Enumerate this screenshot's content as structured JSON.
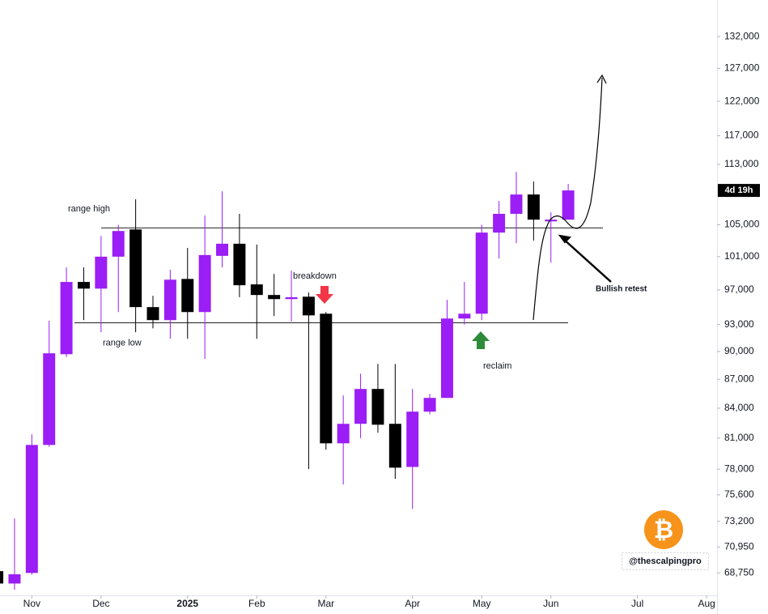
{
  "chart_data": {
    "type": "candlestick",
    "log_scale": true,
    "up_color": "#9a1ef5",
    "down_color": "#000000",
    "categories": [
      null,
      null,
      null,
      null,
      null,
      null,
      null,
      null,
      null,
      null,
      null,
      null,
      null,
      null,
      null,
      null,
      null,
      null,
      null,
      null,
      null,
      null,
      null,
      null,
      null,
      null,
      null,
      null,
      null,
      null,
      null,
      null,
      null,
      null
    ],
    "open": [
      68900,
      67870,
      68750,
      80330,
      89700,
      97940,
      97150,
      101000,
      104400,
      94990,
      93500,
      98300,
      94420,
      101100,
      102600,
      97650,
      96400,
      95920,
      96200,
      94230,
      80490,
      82420,
      85990,
      82420,
      78210,
      83650,
      85060,
      93680,
      94230,
      104000,
      106400,
      108930,
      105430,
      105650
    ],
    "high": [
      69000,
      73450,
      81380,
      93420,
      99690,
      99690,
      103580,
      105000,
      108300,
      96310,
      99400,
      102080,
      106200,
      109360,
      106400,
      102500,
      98900,
      99300,
      96700,
      94420,
      85310,
      87600,
      88650,
      88650,
      85990,
      85470,
      95830,
      97940,
      105000,
      108070,
      111970,
      110660,
      106600,
      110340
    ],
    "low": [
      67800,
      67350,
      68600,
      80150,
      89400,
      93500,
      92130,
      94420,
      92130,
      92570,
      91400,
      91400,
      89200,
      99700,
      96140,
      91400,
      93960,
      93330,
      78000,
      79870,
      76560,
      81000,
      81530,
      77090,
      74320,
      83370,
      85060,
      93000,
      93500,
      100770,
      102670,
      103000,
      100270,
      105650
    ],
    "close": [
      67870,
      68640,
      80330,
      89800,
      97940,
      97150,
      101000,
      104200,
      94990,
      93500,
      98210,
      94420,
      101200,
      102600,
      97550,
      96400,
      95920,
      96140,
      94040,
      80490,
      82420,
      85990,
      82330,
      78140,
      83650,
      85060,
      93680,
      94230,
      104000,
      106400,
      108930,
      105650,
      105650,
      109470
    ],
    "ylim": [
      66900,
      138000
    ],
    "yticks": [
      {
        "value": 68750,
        "label": "68,750"
      },
      {
        "value": 70950,
        "label": "70,950"
      },
      {
        "value": 73200,
        "label": "73,200"
      },
      {
        "value": 75600,
        "label": "75,600"
      },
      {
        "value": 78000,
        "label": "78,000"
      },
      {
        "value": 81000,
        "label": "81,000"
      },
      {
        "value": 84000,
        "label": "84,000"
      },
      {
        "value": 87000,
        "label": "87,000"
      },
      {
        "value": 90000,
        "label": "90,000"
      },
      {
        "value": 93000,
        "label": "93,000"
      },
      {
        "value": 97000,
        "label": "97,000"
      },
      {
        "value": 101000,
        "label": "101,000"
      },
      {
        "value": 105000,
        "label": "105,000"
      },
      {
        "value": 113000,
        "label": "113,000"
      },
      {
        "value": 117000,
        "label": "117,000"
      },
      {
        "value": 122000,
        "label": "122,000"
      },
      {
        "value": 127000,
        "label": "127,000"
      },
      {
        "value": 132000,
        "label": "132,000"
      }
    ],
    "xlim": [
      0.16,
      41.6
    ],
    "xticks": [
      {
        "value": 2,
        "label": "Nov"
      },
      {
        "value": 6,
        "label": "Dec"
      },
      {
        "value": 11,
        "label": "2025"
      },
      {
        "value": 15,
        "label": "Feb"
      },
      {
        "value": 19,
        "label": "Mar"
      },
      {
        "value": 24,
        "label": "Apr"
      },
      {
        "value": 28,
        "label": "May"
      },
      {
        "value": 32,
        "label": "Jun"
      },
      {
        "value": 37,
        "label": "Jul"
      },
      {
        "value": 41,
        "label": "Aug"
      }
    ],
    "levels": [
      {
        "label": "range high",
        "value": 104600
      },
      {
        "label": "range low",
        "value": 93200
      }
    ],
    "annotations": [
      "breakdown",
      "reclaim",
      "Bullish retest"
    ],
    "countdown": "4d 19h",
    "watermark": "@thescalpingpro",
    "logo": "₿"
  }
}
